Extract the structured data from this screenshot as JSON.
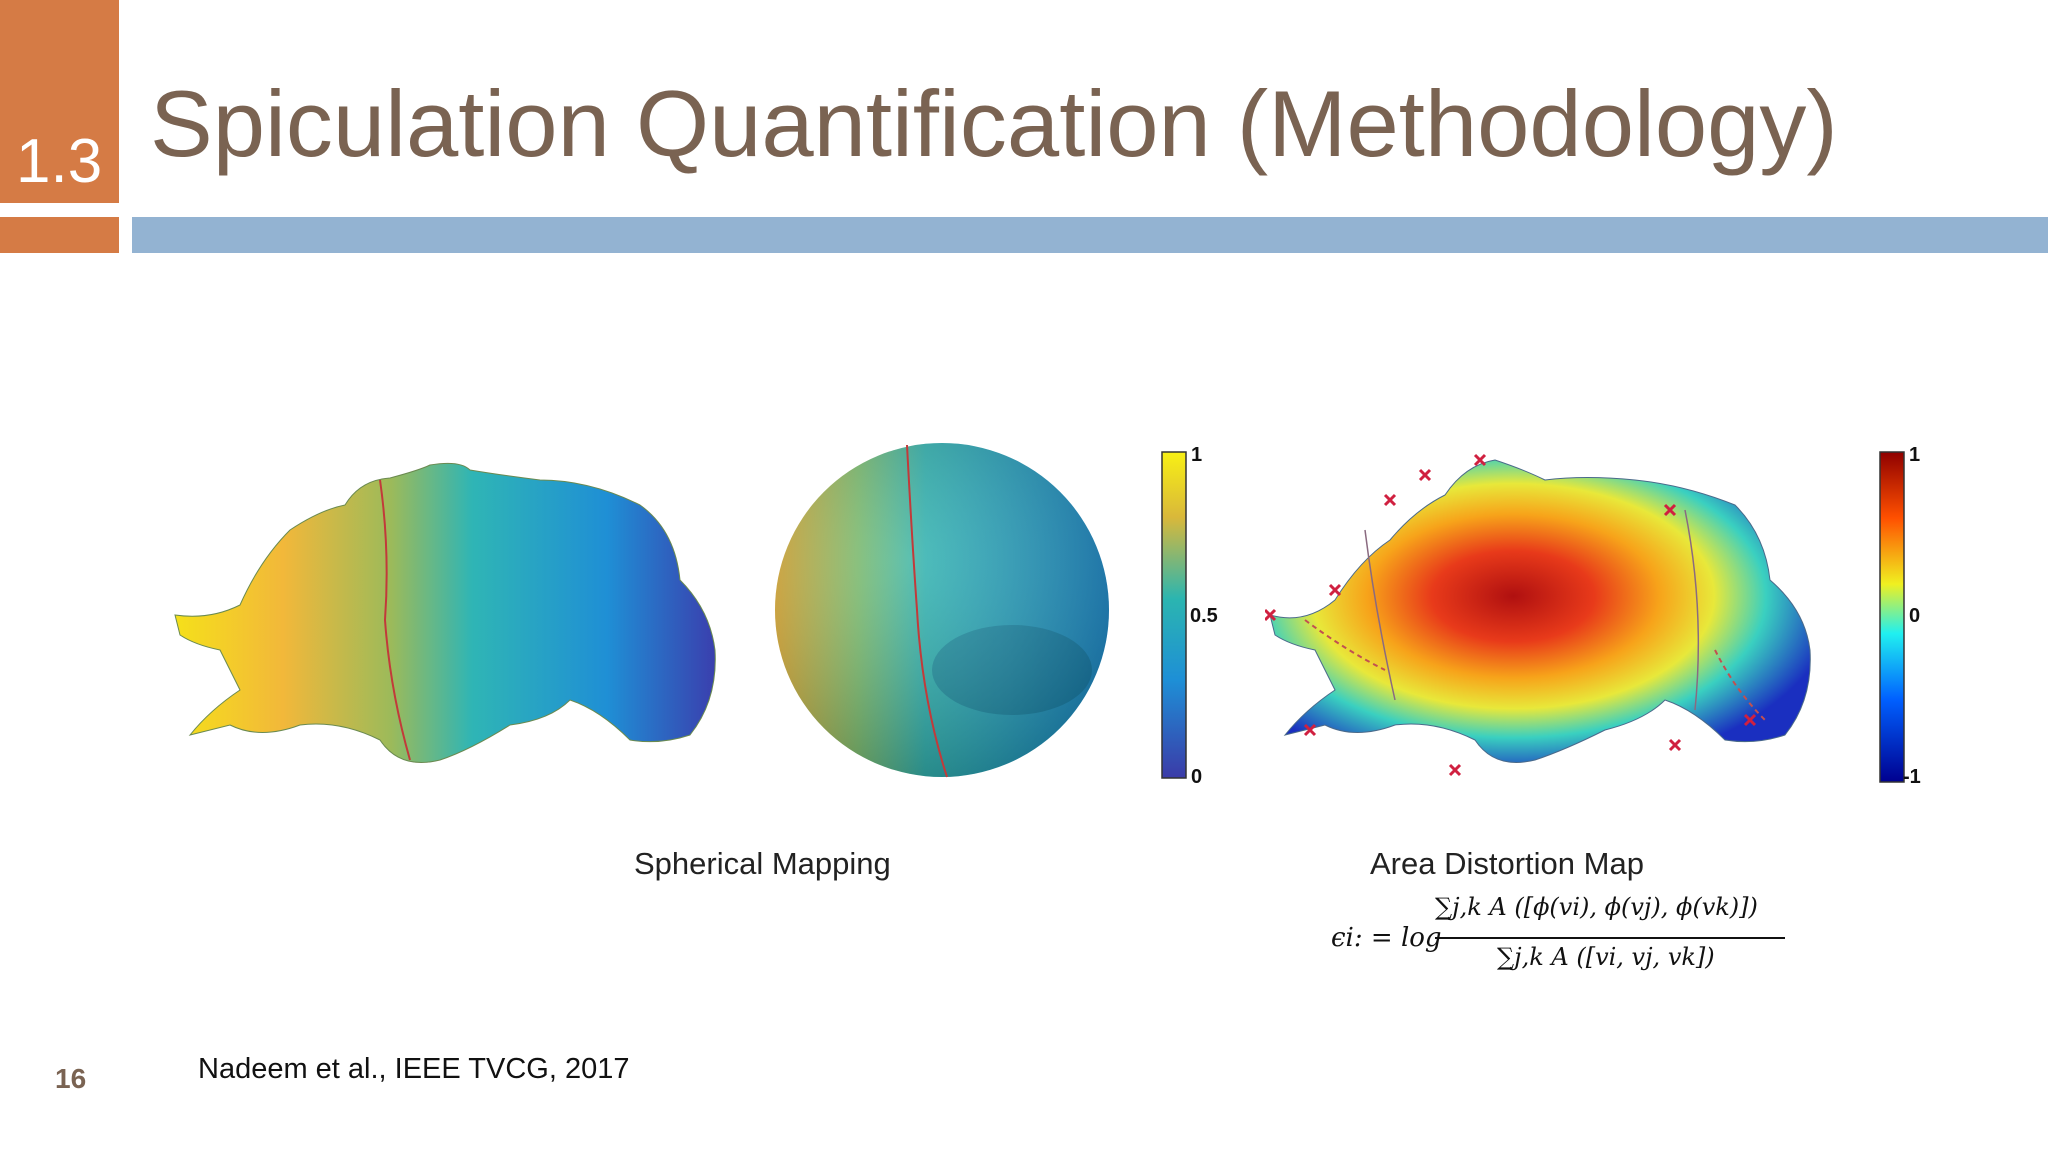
{
  "header": {
    "section_number": "1.3",
    "title": "Spiculation Quantification (Methodology)"
  },
  "figures": {
    "spherical_caption": "Spherical Mapping",
    "distortion_caption": "Area Distortion Map",
    "colorbar_left": {
      "max": "1",
      "mid": "0.5",
      "min": "0"
    },
    "colorbar_right": {
      "max": "1",
      "mid": "0",
      "min": "-1"
    }
  },
  "formula": {
    "lhs": "ϵi: = log",
    "numerator": "∑j,k A ([ϕ(vi), ϕ(vj), ϕ(vk)])",
    "denominator": "∑j,k A ([vi, vj, vk])"
  },
  "footer": {
    "page_number": "16",
    "citation": "Nadeem et al., IEEE TVCG, 2017"
  },
  "colors": {
    "accent_orange": "#d57b45",
    "bar_blue": "#93b3d2",
    "title_brown": "#7a6352"
  }
}
